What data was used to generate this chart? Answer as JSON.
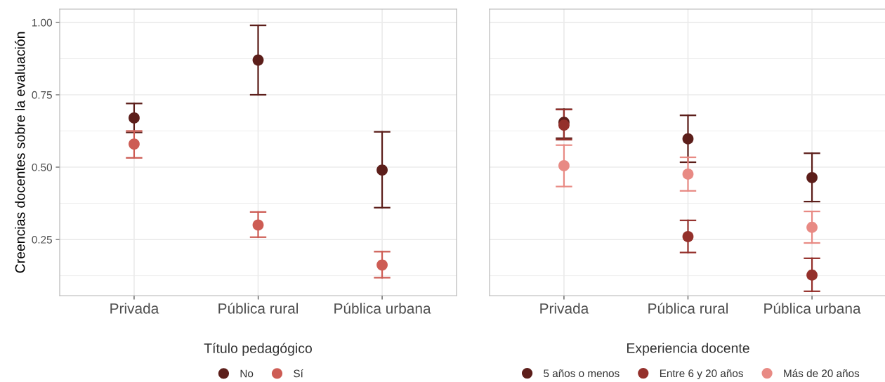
{
  "chart_data": [
    {
      "type": "scatter",
      "ylabel": "Creencias docentes sobre la evaluación",
      "legend_title": "Título pedagógico",
      "legend": "bottom",
      "grid": true,
      "marker": "circle",
      "categories": [
        "Privada",
        "Pública rural",
        "Pública urbana"
      ],
      "ylim": [
        0.056,
        1.046
      ],
      "yticks": [
        {
          "value": 0.25,
          "label": "0.25"
        },
        {
          "value": 0.5,
          "label": "0.50"
        },
        {
          "value": 0.75,
          "label": "0.75"
        },
        {
          "value": 1.0,
          "label": "1.00"
        }
      ],
      "series": [
        {
          "name": "No",
          "color": "#5c1e1a",
          "values": [
            0.67,
            0.87,
            0.49
          ],
          "errors": [
            [
              0.62,
              0.72
            ],
            [
              0.75,
              0.99
            ],
            [
              0.36,
              0.622
            ]
          ]
        },
        {
          "name": "Sí",
          "color": "#cd5c54",
          "values": [
            0.58,
            0.3,
            0.162
          ],
          "errors": [
            [
              0.532,
              0.625
            ],
            [
              0.258,
              0.345
            ],
            [
              0.118,
              0.208
            ]
          ]
        }
      ]
    },
    {
      "type": "scatter",
      "legend_title": "Experiencia docente",
      "legend": "bottom",
      "grid": true,
      "marker": "circle",
      "tick_labels": "x",
      "categories": [
        "Privada",
        "Pública rural",
        "Pública urbana"
      ],
      "ylim": [
        0.056,
        1.046
      ],
      "yticks": [
        {
          "value": 0.25,
          "label": null
        },
        {
          "value": 0.5,
          "label": null
        },
        {
          "value": 0.75,
          "label": null
        },
        {
          "value": 1.0,
          "label": null
        }
      ],
      "series": [
        {
          "name": "5 años o menos",
          "color": "#5c1e1a",
          "values": [
            0.655,
            0.598,
            0.464
          ],
          "errors": [
            [
              0.6,
              0.7
            ],
            [
              0.517,
              0.679
            ],
            [
              0.381,
              0.548
            ]
          ]
        },
        {
          "name": "Entre 6 y 20 años",
          "color": "#94302b",
          "values": [
            0.645,
            0.26,
            0.127
          ],
          "errors": [
            [
              0.595,
              0.699
            ],
            [
              0.205,
              0.316
            ],
            [
              0.071,
              0.185
            ]
          ]
        },
        {
          "name": "Más de 20 años",
          "color": "#e88a84",
          "values": [
            0.505,
            0.476,
            0.292
          ],
          "errors": [
            [
              0.433,
              0.576
            ],
            [
              0.418,
              0.534
            ],
            [
              0.238,
              0.347
            ]
          ]
        }
      ]
    }
  ]
}
